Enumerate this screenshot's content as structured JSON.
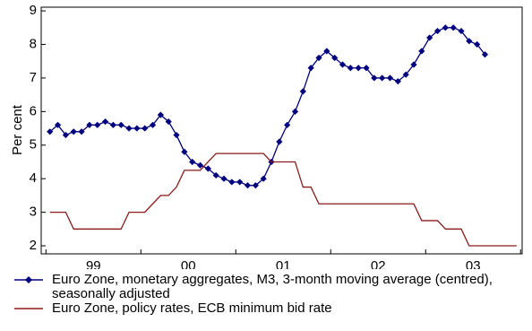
{
  "chart_data": {
    "type": "line",
    "ylabel": "Per cent",
    "xlim": [
      -1.1,
      59.7
    ],
    "ylim": [
      1.76,
      9.11
    ],
    "yticks": [
      2,
      3,
      4,
      5,
      6,
      7,
      8,
      9
    ],
    "xticks": [
      {
        "value": 5.5,
        "label": "99"
      },
      {
        "value": 17.5,
        "label": "00"
      },
      {
        "value": 29.5,
        "label": "01"
      },
      {
        "value": 41.5,
        "label": "02"
      },
      {
        "value": 53.5,
        "label": "03"
      }
    ],
    "xminor_ticks": [
      -0.5,
      11.5,
      23.5,
      35.5,
      47.5,
      59.5
    ],
    "series": [
      {
        "name": "Euro Zone, monetary aggregates, M3, 3-month moving average (centred), seasonally adjusted",
        "color": "#000080",
        "marker": "diamond",
        "x": [
          0,
          1,
          2,
          3,
          4,
          5,
          6,
          7,
          8,
          9,
          10,
          11,
          12,
          13,
          14,
          15,
          16,
          17,
          18,
          19,
          20,
          21,
          22,
          23,
          24,
          25,
          26,
          27,
          28,
          29,
          30,
          31,
          32,
          33,
          34,
          35,
          36,
          37,
          38,
          39,
          40,
          41,
          42,
          43,
          44,
          45,
          46,
          47,
          48,
          49,
          50,
          51,
          52,
          53,
          54,
          55
        ],
        "values": [
          5.4,
          5.6,
          5.3,
          5.4,
          5.4,
          5.6,
          5.6,
          5.7,
          5.6,
          5.6,
          5.5,
          5.5,
          5.5,
          5.6,
          5.9,
          5.7,
          5.3,
          4.8,
          4.5,
          4.4,
          4.3,
          4.1,
          4.0,
          3.9,
          3.9,
          3.8,
          3.8,
          4.0,
          4.5,
          5.1,
          5.6,
          6.0,
          6.6,
          7.3,
          7.6,
          7.8,
          7.6,
          7.4,
          7.3,
          7.3,
          7.3,
          7.0,
          7.0,
          7.0,
          6.9,
          7.1,
          7.4,
          7.8,
          8.2,
          8.4,
          8.5,
          8.5,
          8.4,
          8.1,
          8.0,
          7.7
        ]
      },
      {
        "name": "Euro Zone, policy rates, ECB minimum bid rate",
        "color": "#8b1a1a",
        "marker": "none",
        "x": [
          0,
          1,
          2,
          3,
          4,
          5,
          6,
          7,
          8,
          9,
          10,
          11,
          12,
          13,
          14,
          15,
          16,
          17,
          18,
          19,
          20,
          21,
          22,
          23,
          24,
          25,
          26,
          27,
          28,
          29,
          30,
          31,
          32,
          33,
          34,
          35,
          36,
          37,
          38,
          39,
          40,
          41,
          42,
          43,
          44,
          45,
          46,
          47,
          48,
          49,
          50,
          51,
          52,
          53,
          54,
          55,
          56,
          57,
          58,
          59
        ],
        "values": [
          3.0,
          3.0,
          3.0,
          2.5,
          2.5,
          2.5,
          2.5,
          2.5,
          2.5,
          2.5,
          3.0,
          3.0,
          3.0,
          3.25,
          3.5,
          3.5,
          3.75,
          4.25,
          4.25,
          4.25,
          4.5,
          4.75,
          4.75,
          4.75,
          4.75,
          4.75,
          4.75,
          4.75,
          4.5,
          4.5,
          4.5,
          4.5,
          3.75,
          3.75,
          3.25,
          3.25,
          3.25,
          3.25,
          3.25,
          3.25,
          3.25,
          3.25,
          3.25,
          3.25,
          3.25,
          3.25,
          3.25,
          2.75,
          2.75,
          2.75,
          2.5,
          2.5,
          2.5,
          2.0,
          2.0,
          2.0,
          2.0,
          2.0,
          2.0,
          2.0
        ]
      }
    ]
  }
}
